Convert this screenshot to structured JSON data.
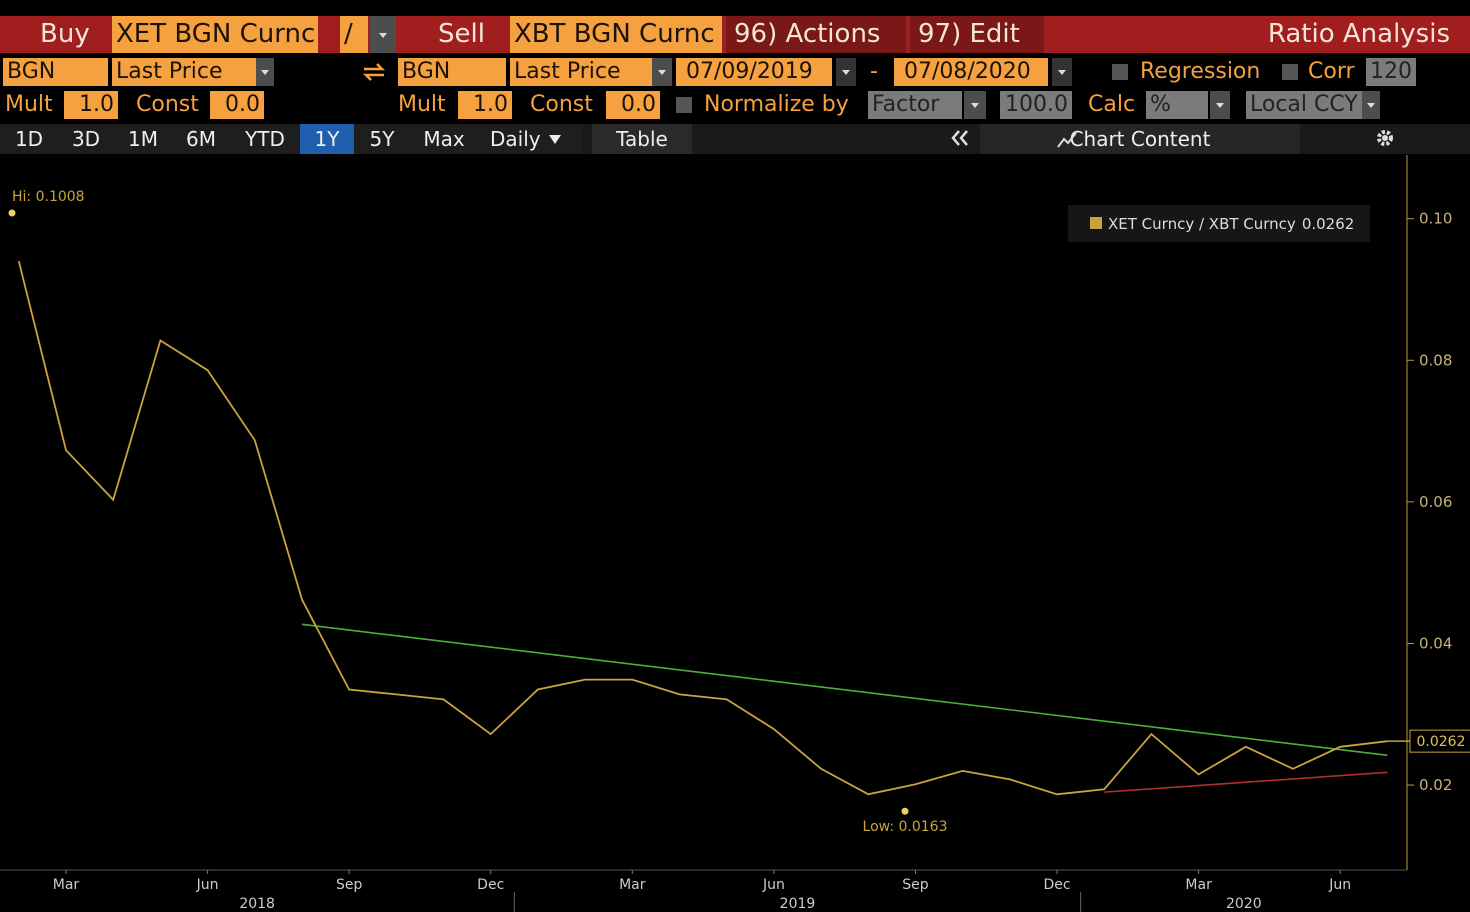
{
  "toolbar": {
    "buy": "Buy",
    "buy_ticker": "XET BGN Curnc",
    "divide": "/",
    "sell": "Sell",
    "sell_ticker": "XBT BGN Curnc",
    "actions": "96) Actions",
    "edit": "97) Edit",
    "title": "Ratio Analysis"
  },
  "source_row": {
    "buy_source": "BGN",
    "buy_field": "Last Price",
    "sell_source": "BGN",
    "sell_field": "Last Price",
    "start_date": "07/09/2019",
    "date_sep": "-",
    "end_date": "07/08/2020",
    "regression": "Regression",
    "corr": "Corr",
    "corr_period": "120"
  },
  "calc_row": {
    "mult_label_1": "Mult",
    "mult_1": "1.0",
    "const_label_1": "Const",
    "const_1": "0.0",
    "mult_label_2": "Mult",
    "mult_2": "1.0",
    "const_label_2": "Const",
    "const_2": "0.0",
    "normalize": "Normalize by",
    "normalize_mode": "Factor",
    "factor": "100.0",
    "calc": "Calc",
    "calc_mode": "%",
    "currency": "Local CCY"
  },
  "tabs": {
    "periods": [
      "1D",
      "3D",
      "1M",
      "6M",
      "YTD",
      "1Y",
      "5Y",
      "Max"
    ],
    "selected": "1Y",
    "frequency": "Daily",
    "table": "Table",
    "chart_content": "Chart Content"
  },
  "chart_data": {
    "type": "line",
    "x": [
      "2018-02",
      "2018-03",
      "2018-04",
      "2018-05",
      "2018-06",
      "2018-07",
      "2018-08",
      "2018-09",
      "2018-10",
      "2018-11",
      "2018-12",
      "2019-01",
      "2019-02",
      "2019-03",
      "2019-04",
      "2019-05",
      "2019-06",
      "2019-07",
      "2019-08",
      "2019-09",
      "2019-10",
      "2019-11",
      "2019-12",
      "2020-01",
      "2020-02",
      "2020-03",
      "2020-04",
      "2020-05",
      "2020-06",
      "2020-07"
    ],
    "series": [
      {
        "name": "XET Curncy / XBT Curncy",
        "color": "#c9a43c",
        "values": [
          0.094,
          0.0673,
          0.0603,
          0.0828,
          0.0786,
          0.0687,
          0.0462,
          0.0335,
          0.0328,
          0.0321,
          0.0272,
          0.0335,
          0.0349,
          0.0349,
          0.0328,
          0.0321,
          0.0279,
          0.0223,
          0.0187,
          0.0201,
          0.022,
          0.0208,
          0.0187,
          0.0194,
          0.0272,
          0.0215,
          0.0254,
          0.0223,
          0.0254,
          0.0262
        ]
      }
    ],
    "xlim": [
      "2018-01",
      "2020-07"
    ],
    "xticks": [
      {
        "value": "2018-03",
        "label": "Mar"
      },
      {
        "value": "2018-06",
        "label": "Jun"
      },
      {
        "value": "2018-09",
        "label": "Sep"
      },
      {
        "value": "2018-12",
        "label": "Dec"
      },
      {
        "value": "2019-03",
        "label": "Mar"
      },
      {
        "value": "2019-06",
        "label": "Jun"
      },
      {
        "value": "2019-09",
        "label": "Sep"
      },
      {
        "value": "2019-12",
        "label": "Dec"
      },
      {
        "value": "2020-03",
        "label": "Mar"
      },
      {
        "value": "2020-06",
        "label": "Jun"
      }
    ],
    "years": [
      "2018",
      "2019",
      "2020"
    ],
    "ylim": [
      0.008,
      0.109
    ],
    "yticks": [
      0.02,
      0.04,
      0.06,
      0.08,
      {
        "value": 0.1,
        "label": "0.10"
      }
    ],
    "trendlines": [
      {
        "color": "#4caf3a",
        "x": [
          "2018-08",
          "2020-07"
        ],
        "values": [
          0.0427,
          0.0242
        ]
      },
      {
        "color": "#b0302a",
        "x": [
          "2020-01",
          "2020-07"
        ],
        "values": [
          0.019,
          0.0218
        ]
      }
    ],
    "annotations": [
      {
        "label": "Hi: 0.1008",
        "value": 0.1008
      },
      {
        "label": "Low: 0.0163",
        "value": 0.0163
      }
    ],
    "last_value": 0.0262
  }
}
